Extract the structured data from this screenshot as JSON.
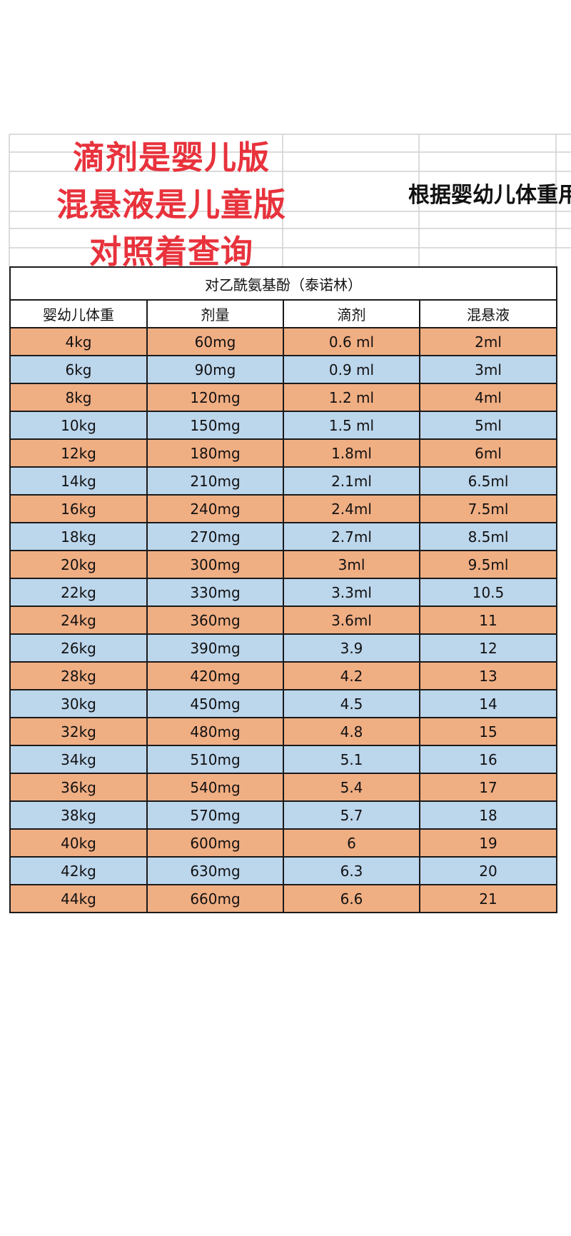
{
  "notes": [
    "滴剂是婴儿版",
    "混悬液是儿童版",
    "对照着查询"
  ],
  "cut_title": "根据婴幼儿体重用",
  "table": {
    "title": "对乙酰氨基酚（泰诺林）",
    "headers": [
      "婴幼儿体重",
      "剂量",
      "滴剂",
      "混悬液"
    ],
    "rows": [
      [
        "4kg",
        "60mg",
        "0.6 ml",
        "2ml"
      ],
      [
        "6kg",
        "90mg",
        "0.9 ml",
        "3ml"
      ],
      [
        "8kg",
        "120mg",
        "1.2 ml",
        "4ml"
      ],
      [
        "10kg",
        "150mg",
        "1.5 ml",
        "5ml"
      ],
      [
        "12kg",
        "180mg",
        "1.8ml",
        "6ml"
      ],
      [
        "14kg",
        "210mg",
        "2.1ml",
        "6.5ml"
      ],
      [
        "16kg",
        "240mg",
        "2.4ml",
        "7.5ml"
      ],
      [
        "18kg",
        "270mg",
        "2.7ml",
        "8.5ml"
      ],
      [
        "20kg",
        "300mg",
        "3ml",
        "9.5ml"
      ],
      [
        "22kg",
        "330mg",
        "3.3ml",
        "10.5"
      ],
      [
        "24kg",
        "360mg",
        "3.6ml",
        "11"
      ],
      [
        "26kg",
        "390mg",
        "3.9",
        "12"
      ],
      [
        "28kg",
        "420mg",
        "4.2",
        "13"
      ],
      [
        "30kg",
        "450mg",
        "4.5",
        "14"
      ],
      [
        "32kg",
        "480mg",
        "4.8",
        "15"
      ],
      [
        "34kg",
        "510mg",
        "5.1",
        "16"
      ],
      [
        "36kg",
        "540mg",
        "5.4",
        "17"
      ],
      [
        "38kg",
        "570mg",
        "5.7",
        "18"
      ],
      [
        "40kg",
        "600mg",
        "6",
        "19"
      ],
      [
        "42kg",
        "630mg",
        "6.3",
        "20"
      ],
      [
        "44kg",
        "660mg",
        "6.6",
        "21"
      ]
    ]
  },
  "colors": {
    "note_red": "#e8323c",
    "row_orange": "#f0ae83",
    "row_blue": "#bcd6ec"
  }
}
